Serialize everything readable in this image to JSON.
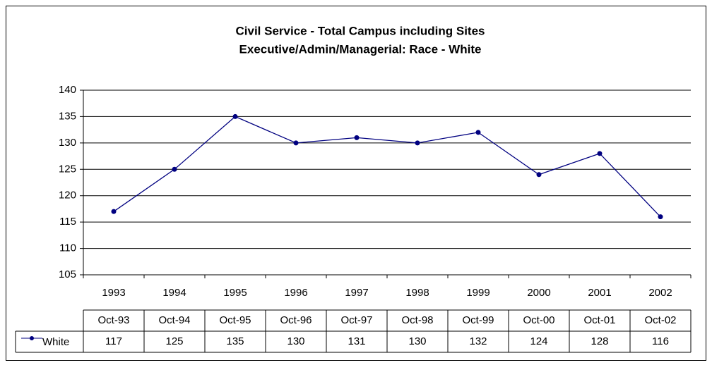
{
  "chart_data": {
    "type": "line",
    "title": [
      "Civil Service - Total Campus including Sites",
      "Executive/Admin/Managerial: Race - White"
    ],
    "categories": [
      "1993",
      "1994",
      "1995",
      "1996",
      "1997",
      "1998",
      "1999",
      "2000",
      "2001",
      "2002"
    ],
    "table_columns": [
      "Oct-93",
      "Oct-94",
      "Oct-95",
      "Oct-96",
      "Oct-97",
      "Oct-98",
      "Oct-99",
      "Oct-00",
      "Oct-01",
      "Oct-02"
    ],
    "series": [
      {
        "name": "White",
        "color": "#000080",
        "values": [
          117,
          125,
          135,
          130,
          131,
          130,
          132,
          124,
          128,
          116
        ]
      }
    ],
    "ylim": [
      105,
      140
    ],
    "yticks": [
      105,
      110,
      115,
      120,
      125,
      130,
      135,
      140
    ],
    "grid": true
  }
}
